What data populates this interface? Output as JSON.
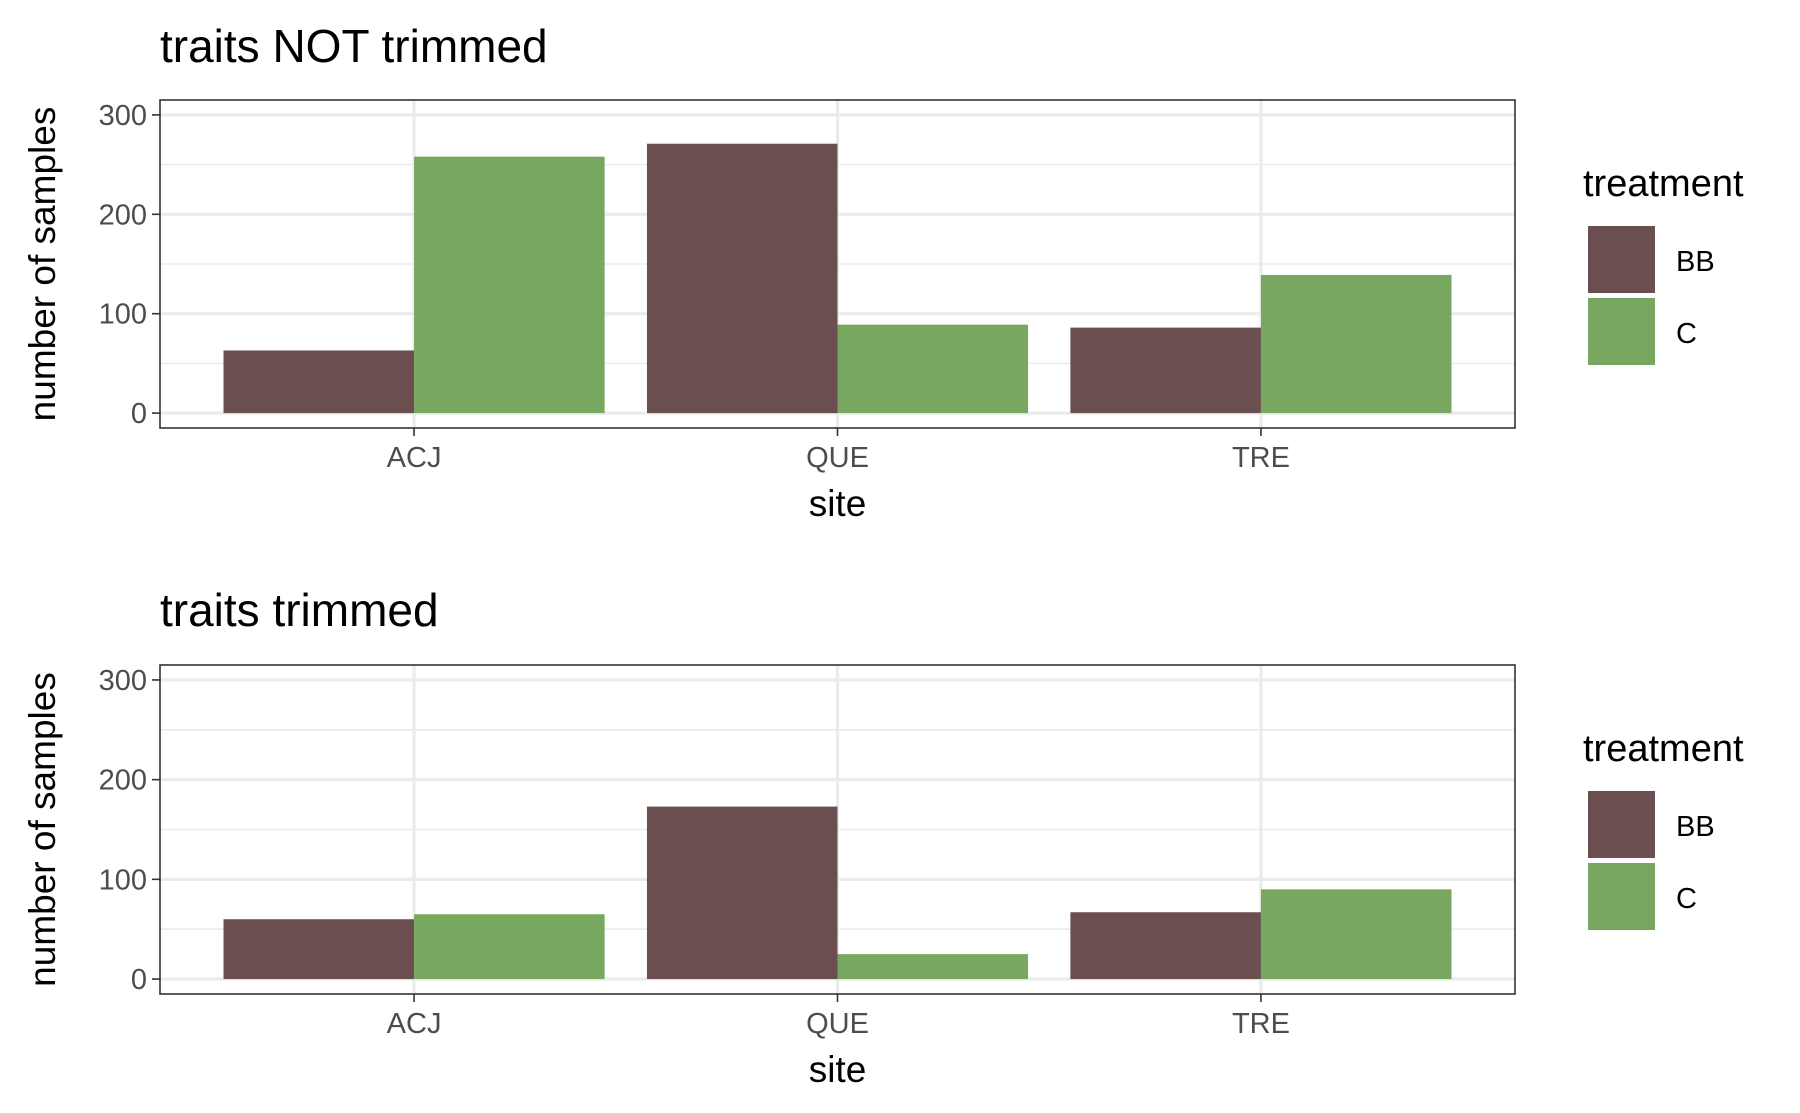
{
  "chart_data": [
    {
      "type": "bar",
      "title": "traits NOT trimmed",
      "xlabel": "site",
      "ylabel": "number of samples",
      "categories": [
        "ACJ",
        "QUE",
        "TRE"
      ],
      "series": [
        {
          "name": "BB",
          "values": [
            63,
            271,
            86
          ]
        },
        {
          "name": "C",
          "values": [
            258,
            89,
            139
          ]
        }
      ],
      "ylim": [
        0,
        300
      ],
      "yticks": [
        "0",
        "100",
        "200",
        "300"
      ],
      "grid": true,
      "legend": {
        "title": "treatment",
        "position": "right"
      }
    },
    {
      "type": "bar",
      "title": "traits trimmed",
      "xlabel": "site",
      "ylabel": "number of samples",
      "categories": [
        "ACJ",
        "QUE",
        "TRE"
      ],
      "series": [
        {
          "name": "BB",
          "values": [
            60,
            173,
            67
          ]
        },
        {
          "name": "C",
          "values": [
            65,
            25,
            90
          ]
        }
      ],
      "ylim": [
        0,
        300
      ],
      "yticks": [
        "0",
        "100",
        "200",
        "300"
      ],
      "grid": true,
      "legend": {
        "title": "treatment",
        "position": "right"
      }
    }
  ],
  "colors": {
    "BB": "#6b4f50",
    "C": "#78a85f"
  }
}
